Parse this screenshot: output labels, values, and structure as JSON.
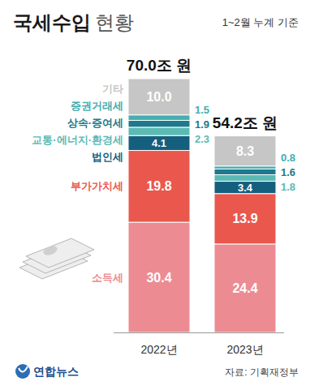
{
  "chart_data": {
    "type": "bar",
    "stacked": true,
    "data_labels": true,
    "tick_labels": false,
    "title": "국세수입 현황",
    "subtitle": "1~2월 누계 기준",
    "categories": [
      "2022년",
      "2023년"
    ],
    "ylim": [
      0,
      70
    ],
    "series": [
      {
        "name": "소득세",
        "color": "#ec8c92",
        "values": [
          30.4,
          24.4
        ]
      },
      {
        "name": "부가가치세",
        "color": "#ea584d",
        "values": [
          19.8,
          13.9
        ]
      },
      {
        "name": "법인세",
        "color": "#155f7e",
        "values": [
          4.1,
          3.4
        ]
      },
      {
        "name": "교통·에너지·환경세",
        "color": "#5cbab5",
        "values": [
          2.3,
          1.8
        ]
      },
      {
        "name": "상속·증여세",
        "color": "#1d7a8c",
        "values": [
          1.9,
          1.6
        ]
      },
      {
        "name": "증권거래세",
        "color": "#44aeb0",
        "values": [
          1.5,
          0.8
        ]
      },
      {
        "name": "기타",
        "color": "#c6c6c6",
        "values": [
          10.0,
          8.3
        ],
        "value_labels": [
          "10.0",
          "8.3"
        ]
      }
    ],
    "totals": [
      70.0,
      54.2
    ],
    "total_labels": [
      "70.0조 원",
      "54.2조 원"
    ],
    "source": "자료: 기획재정부",
    "logo": "연합뉴스"
  }
}
